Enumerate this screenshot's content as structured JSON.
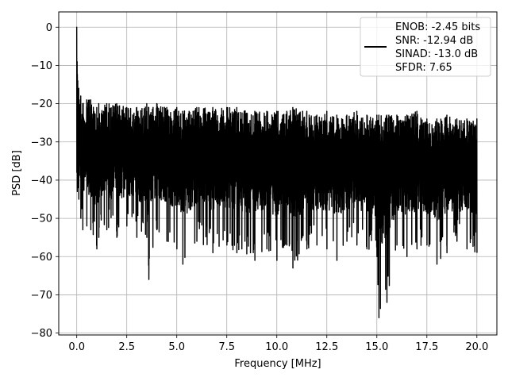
{
  "chart_data": {
    "type": "line",
    "xlabel": "Frequency [MHz]",
    "ylabel": "PSD [dB]",
    "xlim": [
      -0.9,
      21.0
    ],
    "ylim": [
      -80.5,
      4.0
    ],
    "grid": true,
    "xticks": [
      0.0,
      2.5,
      5.0,
      7.5,
      10.0,
      12.5,
      15.0,
      17.5,
      20.0
    ],
    "xtick_labels": [
      "0.0",
      "2.5",
      "5.0",
      "7.5",
      "10.0",
      "12.5",
      "15.0",
      "17.5",
      "20.0"
    ],
    "yticks": [
      0,
      -10,
      -20,
      -30,
      -40,
      -50,
      -60,
      -70,
      -80
    ],
    "ytick_labels": [
      "0",
      "−10",
      "−20",
      "−30",
      "−40",
      "−50",
      "−60",
      "−70",
      "−80"
    ],
    "series": [
      {
        "color": "#000000",
        "x": [
          0.0,
          0.02,
          0.05,
          0.1,
          0.2,
          0.3,
          0.5,
          0.7,
          1.0,
          1.1,
          1.5,
          2.0,
          2.5,
          3.0,
          3.5,
          3.6,
          4.0,
          4.5,
          5.0,
          5.3,
          6.0,
          6.8,
          7.5,
          8.0,
          8.9,
          9.5,
          10.0,
          10.5,
          10.8,
          11.5,
          12.0,
          12.5,
          13.0,
          13.5,
          14.0,
          14.5,
          15.0,
          15.1,
          15.5,
          16.0,
          16.5,
          17.0,
          17.5,
          18.0,
          18.5,
          19.0,
          19.5,
          20.0
        ],
        "peak": [
          0.0,
          -9.0,
          -14.0,
          -16.0,
          -18.0,
          -20.0,
          -19.0,
          -19.0,
          -21.0,
          -20.0,
          -20.0,
          -20.0,
          -21.0,
          -21.0,
          -20.0,
          -21.0,
          -20.0,
          -21.0,
          -21.0,
          -22.0,
          -21.0,
          -21.0,
          -21.0,
          -21.0,
          -22.0,
          -22.0,
          -22.0,
          -22.0,
          -21.0,
          -22.0,
          -23.0,
          -22.0,
          -23.0,
          -23.0,
          -22.0,
          -23.0,
          -23.0,
          -23.0,
          -23.0,
          -23.0,
          -23.0,
          -22.0,
          -24.0,
          -24.0,
          -23.0,
          -24.0,
          -24.0,
          -24.0
        ],
        "trough": [
          -38.0,
          -43.0,
          -42.0,
          -45.0,
          -50.0,
          -53.0,
          -52.0,
          -53.0,
          -58.0,
          -55.0,
          -53.0,
          -55.0,
          -52.0,
          -55.0,
          -55.0,
          -66.0,
          -53.0,
          -56.0,
          -58.0,
          -62.0,
          -56.0,
          -59.0,
          -57.0,
          -59.0,
          -61.0,
          -58.0,
          -61.0,
          -57.0,
          -63.0,
          -58.0,
          -57.0,
          -58.0,
          -61.0,
          -56.0,
          -57.0,
          -58.0,
          -60.0,
          -76.0,
          -72.0,
          -57.0,
          -60.0,
          -58.0,
          -57.0,
          -62.0,
          -59.0,
          -56.0,
          -58.0,
          -59.0
        ]
      }
    ],
    "legend": {
      "placement": "upper-right",
      "entries": [
        "ENOB: -2.45 bits",
        "SNR: -12.94 dB",
        "SINAD: -13.0 dB",
        "SFDR: 7.65"
      ]
    }
  }
}
